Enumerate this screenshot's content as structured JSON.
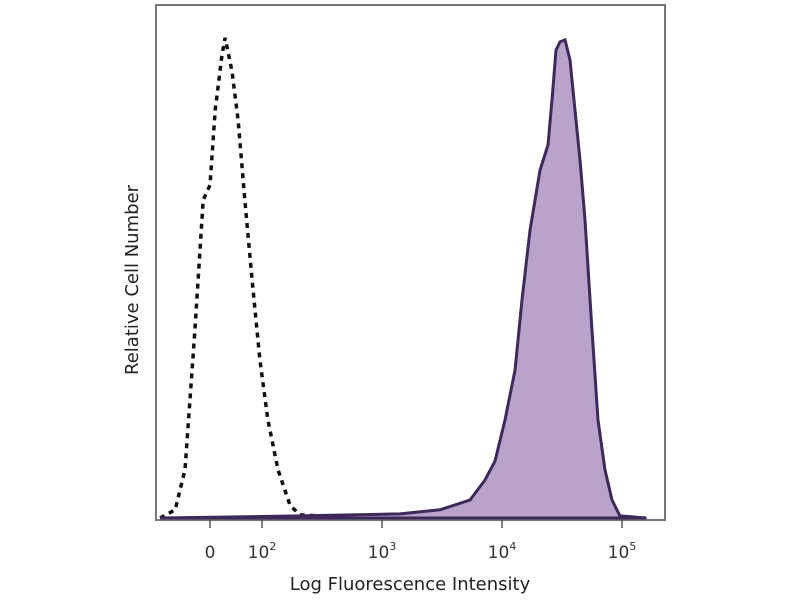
{
  "chart_data": {
    "type": "area",
    "title": "",
    "xlabel": "Log Fluorescence Intensity",
    "ylabel": "Relative Cell Number",
    "x_scale": "biexponential",
    "x_ticks": [
      {
        "value": 0,
        "label": "0",
        "sup": ""
      },
      {
        "value": 100,
        "label": "10",
        "sup": "2"
      },
      {
        "value": 1000,
        "label": "10",
        "sup": "3"
      },
      {
        "value": 10000,
        "label": "10",
        "sup": "4"
      },
      {
        "value": 100000,
        "label": "10",
        "sup": "5"
      }
    ],
    "xlim": [
      -100,
      180000
    ],
    "ylim": [
      0,
      100
    ],
    "grid": false,
    "series": [
      {
        "style": "dashed-outline",
        "color": "#111111",
        "points": [
          [
            -96,
            0
          ],
          [
            -67,
            1.6
          ],
          [
            -48,
            9.4
          ],
          [
            -29,
            36.6
          ],
          [
            -13,
            62
          ],
          [
            0,
            64.9
          ],
          [
            10,
            79.5
          ],
          [
            23,
            90.3
          ],
          [
            29,
            93.6
          ],
          [
            42,
            87.3
          ],
          [
            54,
            77.6
          ],
          [
            67,
            62
          ],
          [
            81,
            46.4
          ],
          [
            96,
            30.8
          ],
          [
            112,
            19.1
          ],
          [
            136,
            9.4
          ],
          [
            171,
            2.5
          ],
          [
            207,
            0.6
          ],
          [
            304,
            0.4
          ],
          [
            655,
            0.2
          ],
          [
            1413,
            0
          ]
        ]
      },
      {
        "style": "filled",
        "color": "#3d2a5a",
        "fill": "#b9a3cb",
        "points": [
          [
            -96,
            0
          ],
          [
            207,
            0.4
          ],
          [
            1413,
            0.8
          ],
          [
            3041,
            1.6
          ],
          [
            5412,
            3.5
          ],
          [
            7211,
            7.4
          ],
          [
            8750,
            11.1
          ],
          [
            10590,
            19.1
          ],
          [
            12830,
            28.8
          ],
          [
            14680,
            42.5
          ],
          [
            17100,
            56.1
          ],
          [
            20740,
            67.8
          ],
          [
            24170,
            72.7
          ],
          [
            26100,
            81.5
          ],
          [
            28180,
            91.2
          ],
          [
            30420,
            92.8
          ],
          [
            33500,
            93.2
          ],
          [
            36870,
            89.3
          ],
          [
            40550,
            79.5
          ],
          [
            44670,
            69.8
          ],
          [
            49200,
            58.1
          ],
          [
            56230,
            36.6
          ],
          [
            63100,
            19.1
          ],
          [
            72100,
            9.4
          ],
          [
            82500,
            3.5
          ],
          [
            96100,
            0.4
          ],
          [
            160000,
            0
          ]
        ]
      }
    ]
  }
}
